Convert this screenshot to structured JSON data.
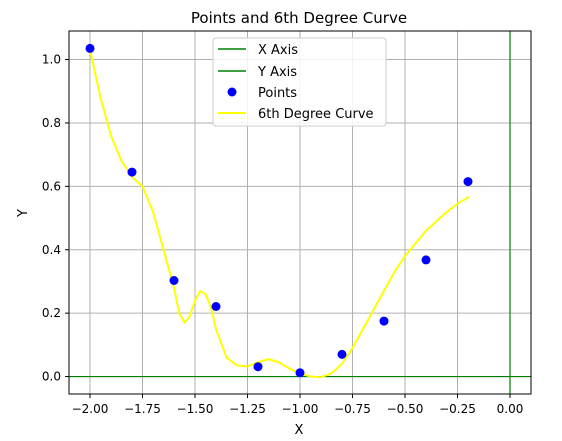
{
  "chart_data": {
    "type": "scatter",
    "title": "Points and 6th Degree Curve",
    "xlabel": "X",
    "ylabel": "Y",
    "xlim": [
      -2.1,
      0.1
    ],
    "ylim": [
      -0.055,
      1.09
    ],
    "x_ticks": [
      -2.0,
      -1.75,
      -1.5,
      -1.25,
      -1.0,
      -0.75,
      -0.5,
      -0.25,
      0.0
    ],
    "x_tick_labels": [
      "−2.00",
      "−1.75",
      "−1.50",
      "−1.25",
      "−1.00",
      "−0.75",
      "−0.50",
      "−0.25",
      "0.00"
    ],
    "y_ticks": [
      0.0,
      0.2,
      0.4,
      0.6,
      0.8,
      1.0
    ],
    "y_tick_labels": [
      "0.0",
      "0.2",
      "0.4",
      "0.6",
      "0.8",
      "1.0"
    ],
    "grid": true,
    "legend_position": "top-center",
    "series": [
      {
        "name": "X Axis",
        "type": "hline",
        "y": 0,
        "color": "#008000"
      },
      {
        "name": "Y Axis",
        "type": "vline",
        "x": 0,
        "color": "#008000"
      },
      {
        "name": "Points",
        "type": "scatter",
        "color": "#0000ff",
        "x": [
          -2.0,
          -1.8,
          -1.6,
          -1.4,
          -1.2,
          -1.0,
          -0.8,
          -0.6,
          -0.4,
          -0.2
        ],
        "y": [
          1.035,
          0.645,
          0.303,
          0.221,
          0.031,
          0.012,
          0.07,
          0.175,
          0.368,
          0.615
        ]
      },
      {
        "name": "6th Degree Curve",
        "type": "line",
        "color": "#ffff00",
        "x": [
          -2.0,
          -1.95,
          -1.9,
          -1.85,
          -1.8,
          -1.75,
          -1.7,
          -1.65,
          -1.6,
          -1.575,
          -1.55,
          -1.525,
          -1.5,
          -1.475,
          -1.45,
          -1.425,
          -1.4,
          -1.35,
          -1.3,
          -1.25,
          -1.2,
          -1.15,
          -1.1,
          -1.05,
          -1.0,
          -0.95,
          -0.9,
          -0.85,
          -0.8,
          -0.75,
          -0.7,
          -0.65,
          -0.6,
          -0.55,
          -0.5,
          -0.45,
          -0.4,
          -0.35,
          -0.3,
          -0.25,
          -0.2
        ],
        "y": [
          1.03,
          0.88,
          0.76,
          0.68,
          0.63,
          0.6,
          0.52,
          0.4,
          0.28,
          0.2,
          0.17,
          0.19,
          0.24,
          0.27,
          0.26,
          0.22,
          0.15,
          0.06,
          0.035,
          0.032,
          0.045,
          0.055,
          0.045,
          0.025,
          0.01,
          0.0,
          -0.002,
          0.01,
          0.04,
          0.09,
          0.15,
          0.21,
          0.27,
          0.33,
          0.38,
          0.42,
          0.46,
          0.49,
          0.52,
          0.545,
          0.565
        ]
      }
    ]
  }
}
